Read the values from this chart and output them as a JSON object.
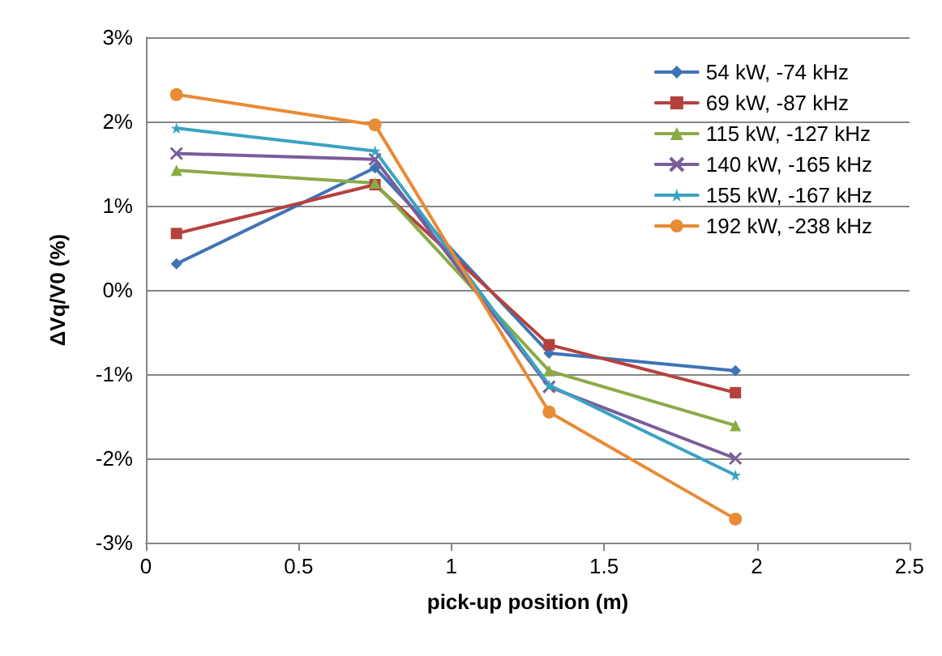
{
  "chart_data": {
    "type": "line",
    "xlabel": "pick-up position (m)",
    "ylabel": "ΔVq/V0 (%)",
    "x": [
      0.1,
      0.75,
      1.32,
      1.93
    ],
    "series": [
      {
        "name": "54 kW, -74 kHz",
        "color": "#4073b4",
        "marker": "diamond",
        "values": [
          0.31,
          1.45,
          -0.75,
          -0.96
        ]
      },
      {
        "name": "69 kW, -87 kHz",
        "color": "#b5413e",
        "marker": "square",
        "values": [
          0.67,
          1.25,
          -0.65,
          -1.22
        ]
      },
      {
        "name": "115 kW, -127 kHz",
        "color": "#8bab47",
        "marker": "triangle",
        "values": [
          1.42,
          1.27,
          -0.96,
          -1.61
        ]
      },
      {
        "name": "140 kW, -165 kHz",
        "color": "#7a5c9a",
        "marker": "cross",
        "values": [
          1.62,
          1.55,
          -1.15,
          -2.0
        ]
      },
      {
        "name": "155 kW, -167 kHz",
        "color": "#3aa3c1",
        "marker": "star",
        "values": [
          1.92,
          1.65,
          -1.13,
          -2.2
        ]
      },
      {
        "name": "192 kW, -238 kHz",
        "color": "#e98a35",
        "marker": "circle",
        "values": [
          2.32,
          1.96,
          -1.45,
          -2.72
        ]
      }
    ],
    "xlim": [
      0,
      2.5
    ],
    "xticks": [
      0,
      {
        "value": 0.5,
        "label": "0.5"
      },
      1,
      {
        "value": 1.5,
        "label": "1.5"
      },
      2,
      {
        "value": 2.5,
        "label": "2.5"
      }
    ],
    "ylim": [
      -3,
      3
    ],
    "yticks": [
      {
        "value": -3,
        "label": "-3%"
      },
      {
        "value": -2,
        "label": "-2%"
      },
      {
        "value": -1,
        "label": "-1%"
      },
      {
        "value": 0,
        "label": "0%"
      },
      {
        "value": 1,
        "label": "1%"
      },
      {
        "value": 2,
        "label": "2%"
      },
      {
        "value": 3,
        "label": "3%"
      }
    ],
    "grid": "y",
    "legend": "top right",
    "line_style": "solid"
  }
}
